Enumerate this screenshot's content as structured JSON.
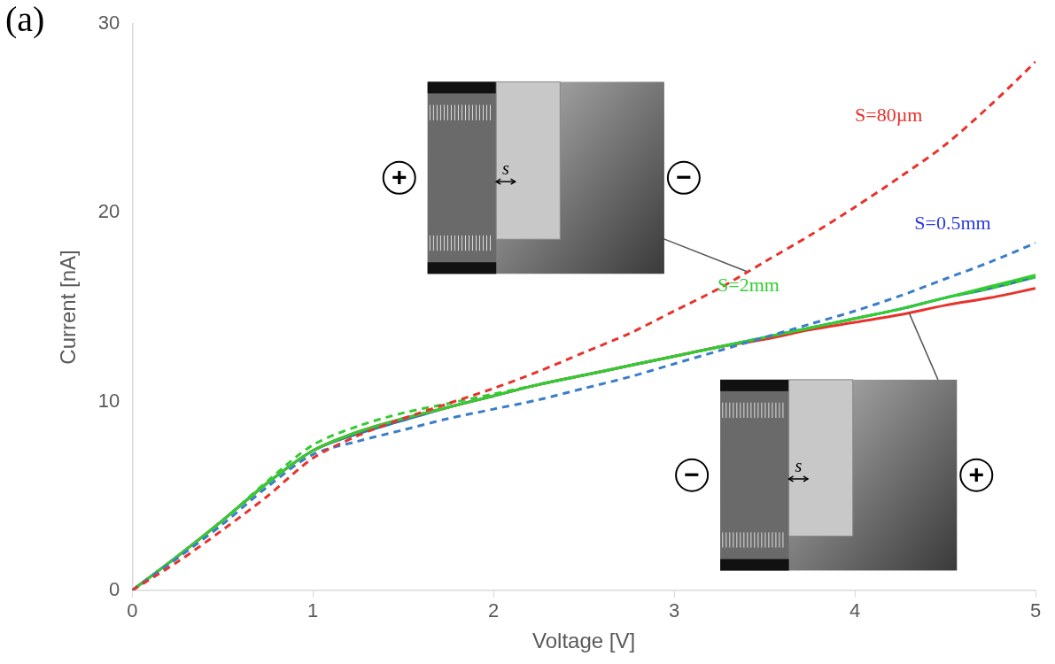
{
  "chart_data": {
    "type": "line",
    "panel_label": "(a)",
    "x_label": "Voltage [V]",
    "y_label": "Current [nA]",
    "x": [
      0,
      0.25,
      0.5,
      0.75,
      1,
      1.25,
      1.5,
      1.75,
      2,
      2.25,
      2.5,
      2.75,
      3,
      3.25,
      3.5,
      3.75,
      4,
      4.25,
      4.5,
      4.75,
      5
    ],
    "xlim": [
      0,
      5
    ],
    "xticks": [
      0,
      1,
      2,
      3,
      4,
      5
    ],
    "ylim": [
      0,
      30
    ],
    "yticks": [
      0,
      10,
      20,
      30
    ],
    "grid": false,
    "series": [
      {
        "color": "#e8322c",
        "line_style": "dashed",
        "values": [
          0,
          1.5,
          3.2,
          5.0,
          7.0,
          8.2,
          9.1,
          9.9,
          10.7,
          11.6,
          12.6,
          13.6,
          14.8,
          16.0,
          17.4,
          18.8,
          20.3,
          21.9,
          23.6,
          25.7,
          28.0
        ]
      },
      {
        "color": "#3a7dc9",
        "line_style": "dashed",
        "values": [
          0,
          1.7,
          3.5,
          5.5,
          7.2,
          7.9,
          8.5,
          9.1,
          9.6,
          10.1,
          10.7,
          11.3,
          12.0,
          12.7,
          13.4,
          14.1,
          14.8,
          15.6,
          16.5,
          17.4,
          18.4
        ]
      },
      {
        "color": "#33cc33",
        "line_style": "dashed",
        "values": [
          0,
          1.8,
          3.7,
          5.8,
          7.7,
          8.7,
          9.4,
          9.9,
          10.4,
          10.9,
          11.4,
          11.9,
          12.4,
          12.9,
          13.4,
          13.9,
          14.4,
          14.9,
          15.5,
          16.0,
          16.6
        ]
      },
      {
        "color": "#33cc33",
        "line_style": "solid",
        "values": [
          0,
          1.8,
          3.7,
          5.7,
          7.4,
          8.4,
          9.1,
          9.7,
          10.3,
          10.9,
          11.4,
          11.9,
          12.4,
          12.9,
          13.4,
          13.9,
          14.4,
          14.9,
          15.5,
          16.1,
          16.7
        ]
      },
      {
        "color": "#e8322c",
        "line_style": "solid",
        "values": [
          0,
          1.8,
          3.7,
          5.7,
          7.4,
          8.4,
          9.1,
          9.7,
          10.3,
          10.9,
          11.4,
          11.9,
          12.4,
          12.9,
          13.3,
          13.8,
          14.2,
          14.6,
          15.1,
          15.5,
          16.0
        ]
      },
      {
        "color": "#2e75b6",
        "line_style": "solid",
        "values": [
          0,
          1.8,
          3.7,
          5.7,
          7.4,
          8.3,
          9.0,
          9.7,
          10.3,
          10.9,
          11.4,
          11.9,
          12.4,
          12.9,
          13.4,
          13.9,
          14.4,
          14.9,
          15.5,
          16.0,
          16.6
        ]
      }
    ],
    "annotations": [
      {
        "text": "S=80µm",
        "x": 4.0,
        "y": 25.1,
        "color": "#e8302a"
      },
      {
        "text": "S=0.5mm",
        "x": 4.33,
        "y": 19.4,
        "color": "#2c3ae0"
      },
      {
        "text": "S=2mm",
        "x": 3.24,
        "y": 16.1,
        "color": "#33cc33"
      }
    ],
    "insets": [
      {
        "left_sign": "+",
        "right_sign": "−",
        "gap_label": "s",
        "points_to": [
          3.4,
          16.9
        ]
      },
      {
        "left_sign": "−",
        "right_sign": "+",
        "gap_label": "s",
        "points_to": [
          4.3,
          14.7
        ]
      }
    ],
    "tick_labels": true
  }
}
